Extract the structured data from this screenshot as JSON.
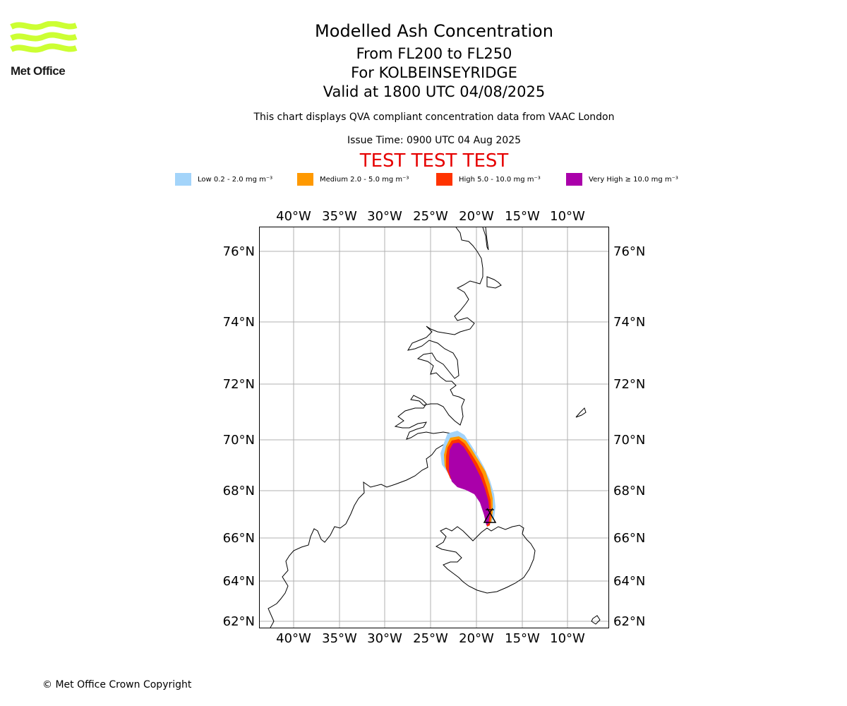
{
  "brand": {
    "name": "Met Office",
    "logo_color": "#ccff33"
  },
  "title": {
    "line1": "Modelled Ash Concentration",
    "line2": "From FL200 to FL250",
    "line3": "For KOLBEINSEYRIDGE",
    "line4": "Valid at 1800 UTC 04/08/2025"
  },
  "note": "This chart displays QVA compliant concentration data from VAAC London",
  "issue_time": "Issue Time: 0900 UTC 04 Aug 2025",
  "banner": {
    "text": "TEST TEST TEST",
    "color": "#e60000"
  },
  "legend": [
    {
      "label": "Low 0.2 - 2.0 mg m⁻³",
      "color": "#a3d4fa"
    },
    {
      "label": "Medium 2.0 - 5.0 mg m⁻³",
      "color": "#ff9900"
    },
    {
      "label": "High 5.0 - 10.0 mg m⁻³",
      "color": "#ff3300"
    },
    {
      "label": "Very High  ≥  10.0 mg m⁻³",
      "color": "#aa00aa"
    }
  ],
  "map": {
    "lon_labels": [
      "40°W",
      "35°W",
      "30°W",
      "25°W",
      "20°W",
      "15°W",
      "10°W"
    ],
    "lat_labels": [
      "76°N",
      "74°N",
      "72°N",
      "70°N",
      "68°N",
      "66°N",
      "64°N",
      "62°N"
    ],
    "gridlines": true,
    "volcano_symbol": "volcano-triangle-icon",
    "coastlines": [
      "Greenland",
      "Iceland",
      "Jan Mayen"
    ]
  },
  "copyright": "© Met Office Crown Copyright"
}
